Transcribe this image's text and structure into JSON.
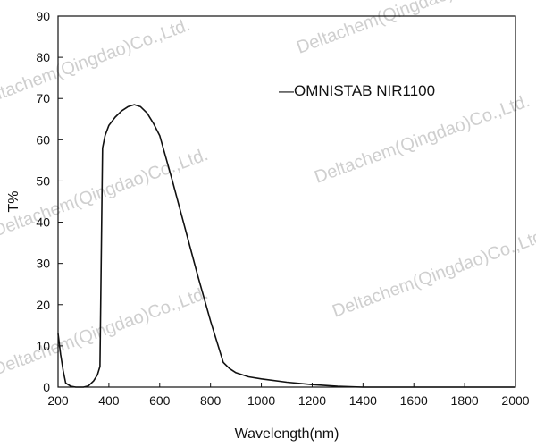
{
  "chart_data": {
    "type": "line",
    "title": "",
    "xlabel": "Wavelength(nm)",
    "ylabel": "T%",
    "xlim": [
      200,
      2000
    ],
    "ylim": [
      0,
      90
    ],
    "x_ticks": [
      "200",
      "400",
      "600",
      "800",
      "1000",
      "1200",
      "1400",
      "1600",
      "1800",
      "2000"
    ],
    "y_ticks": [
      "0",
      "10",
      "20",
      "30",
      "40",
      "50",
      "60",
      "70",
      "80",
      "90"
    ],
    "grid": false,
    "legend": {
      "position": "top-right",
      "label": "—OMNISTAB NIR1100"
    },
    "series": [
      {
        "name": "OMNISTAB NIR1100",
        "color": "#111111",
        "x": [
          200,
          210,
          220,
          230,
          250,
          270,
          300,
          320,
          340,
          355,
          365,
          375,
          385,
          400,
          425,
          450,
          475,
          500,
          525,
          550,
          575,
          600,
          650,
          700,
          750,
          800,
          850,
          875,
          900,
          950,
          1000,
          1100,
          1200,
          1300,
          1400,
          1500,
          1600,
          1800,
          2000
        ],
        "y": [
          13,
          8,
          4,
          1,
          0.2,
          0,
          0,
          0.3,
          1.5,
          3,
          5,
          58,
          61,
          63.5,
          65.5,
          67,
          68,
          68.5,
          68,
          66.5,
          64,
          61,
          50,
          38.5,
          27,
          16,
          6,
          4.5,
          3.5,
          2.5,
          2,
          1.2,
          0.6,
          0.2,
          0,
          0,
          0,
          0,
          0
        ]
      }
    ]
  },
  "watermarks": [
    "Deltachem(Qingdao)Co.,Ltd.",
    "Deltachem(Qingdao)Co.,Ltd.",
    "Deltachem(Qingdao)Co.,Ltd.",
    "Deltachem(Qingdao)Co.,Ltd.",
    "Deltachem(Qingdao)Co.,Ltd.",
    "Deltachem(Qingdao)Co.,Ltd."
  ]
}
